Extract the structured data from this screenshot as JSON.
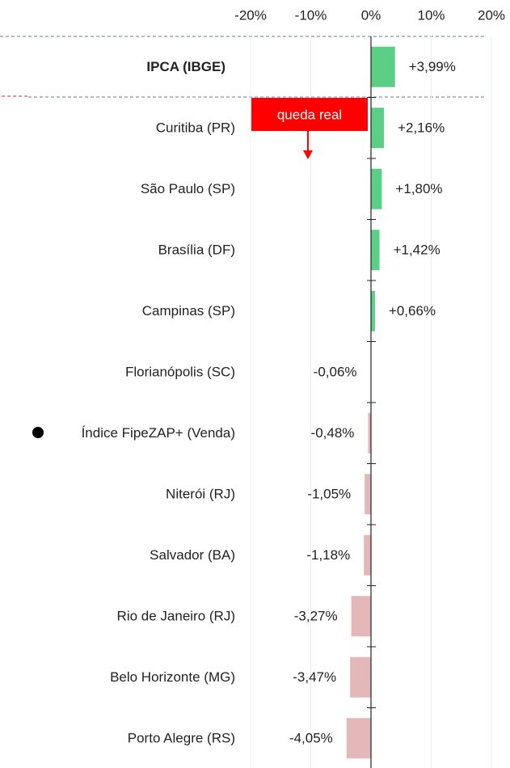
{
  "chart_data": {
    "type": "barh",
    "categories": [
      "IPCA (IBGE)",
      "Curitiba (PR)",
      "São Paulo (SP)",
      "Brasília (DF)",
      "Campinas (SP)",
      "Florianópolis (SC)",
      "Índice FipeZAP+ (Venda)",
      "Niterói (RJ)",
      "Salvador (BA)",
      "Rio de Janeiro (RJ)",
      "Belo Horizonte (MG)",
      "Porto Alegre (RS)"
    ],
    "values": [
      3.99,
      2.16,
      1.8,
      1.42,
      0.66,
      -0.06,
      -0.48,
      -1.05,
      -1.18,
      -3.27,
      -3.47,
      -4.05
    ],
    "value_labels": [
      "+3,99%",
      "+2,16%",
      "+1,80%",
      "+1,42%",
      "+0,66%",
      "-0,06%",
      "-0,48%",
      "-1,05%",
      "-1,18%",
      "-3,27%",
      "-3,47%",
      "-4,05%"
    ],
    "positive_color": "#5ccf87",
    "negative_color": "#e4b8b8",
    "xlim": [
      -20,
      20
    ],
    "xticks": [
      {
        "value": -20,
        "label": "-20%"
      },
      {
        "value": -10,
        "label": "-10%"
      },
      {
        "value": 0,
        "label": "0%"
      },
      {
        "value": 10,
        "label": "10%"
      },
      {
        "value": 20,
        "label": "20%"
      }
    ],
    "grid": true,
    "annotation": "queda real"
  }
}
